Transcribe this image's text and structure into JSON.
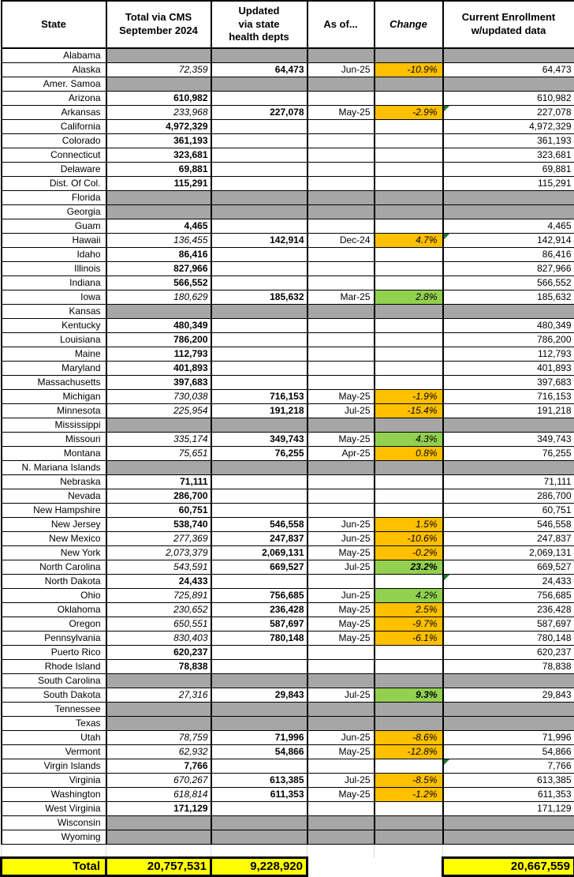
{
  "colors": {
    "orange": "#FFC000",
    "green": "#92D050",
    "gray": "#A6A6A6",
    "yellow": "#FFFF00",
    "flag_triangle": "#1E7B34"
  },
  "table": {
    "header": {
      "state": "State",
      "cms": "Total via CMS\nSeptember 2024",
      "updated": "Updated\nvia state\nhealth depts",
      "as_of": "As of...",
      "change": "Change",
      "current": "Current Enrollment\nw/updated data"
    },
    "rows": [
      {
        "state": "Alabama",
        "gray": true
      },
      {
        "state": "Alaska",
        "cms": "72,359",
        "cms_style": "italic",
        "updated": "64,473",
        "as_of": "Jun-25",
        "change": "-10.9%",
        "change_bg": "orange",
        "current": "64,473"
      },
      {
        "state": "Amer. Samoa",
        "gray": true
      },
      {
        "state": "Arizona",
        "cms": "610,982",
        "cms_style": "bold",
        "current": "610,982"
      },
      {
        "state": "Arkansas",
        "cms": "233,968",
        "cms_style": "italic",
        "updated": "227,078",
        "as_of": "May-25",
        "change": "-2.9%",
        "change_bg": "orange",
        "current": "227,078",
        "flag": true
      },
      {
        "state": "California",
        "cms": "4,972,329",
        "cms_style": "bold",
        "current": "4,972,329"
      },
      {
        "state": "Colorado",
        "cms": "361,193",
        "cms_style": "bold",
        "current": "361,193"
      },
      {
        "state": "Connecticut",
        "cms": "323,681",
        "cms_style": "bold",
        "current": "323,681"
      },
      {
        "state": "Delaware",
        "cms": "69,881",
        "cms_style": "bold",
        "current": "69,881"
      },
      {
        "state": "Dist. Of Col.",
        "cms": "115,291",
        "cms_style": "bold",
        "current": "115,291"
      },
      {
        "state": "Florida",
        "gray": true
      },
      {
        "state": "Georgia",
        "gray": true
      },
      {
        "state": "Guam",
        "cms": "4,465",
        "cms_style": "bold",
        "current": "4,465"
      },
      {
        "state": "Hawaii",
        "cms": "136,455",
        "cms_style": "italic",
        "updated": "142,914",
        "as_of": "Dec-24",
        "change": "4.7%",
        "change_bg": "orange",
        "current": "142,914",
        "flag": true
      },
      {
        "state": "Idaho",
        "cms": "86,416",
        "cms_style": "bold",
        "current": "86,416"
      },
      {
        "state": "Illinois",
        "cms": "827,966",
        "cms_style": "bold",
        "current": "827,966"
      },
      {
        "state": "Indiana",
        "cms": "566,552",
        "cms_style": "bold",
        "current": "566,552"
      },
      {
        "state": "Iowa",
        "cms": "180,629",
        "cms_style": "italic",
        "updated": "185,632",
        "as_of": "Mar-25",
        "change": "2.8%",
        "change_bg": "green",
        "current": "185,632"
      },
      {
        "state": "Kansas",
        "gray": true
      },
      {
        "state": "Kentucky",
        "cms": "480,349",
        "cms_style": "bold",
        "current": "480,349"
      },
      {
        "state": "Louisiana",
        "cms": "786,200",
        "cms_style": "bold",
        "current": "786,200"
      },
      {
        "state": "Maine",
        "cms": "112,793",
        "cms_style": "bold",
        "current": "112,793"
      },
      {
        "state": "Maryland",
        "cms": "401,893",
        "cms_style": "bold",
        "current": "401,893"
      },
      {
        "state": "Massachusetts",
        "cms": "397,683",
        "cms_style": "bold",
        "current": "397,683"
      },
      {
        "state": "Michigan",
        "cms": "730,038",
        "cms_style": "italic",
        "updated": "716,153",
        "as_of": "May-25",
        "change": "-1.9%",
        "change_bg": "orange",
        "current": "716,153"
      },
      {
        "state": "Minnesota",
        "cms": "225,954",
        "cms_style": "italic",
        "updated": "191,218",
        "as_of": "Jul-25",
        "change": "-15.4%",
        "change_bg": "orange",
        "current": "191,218"
      },
      {
        "state": "Mississippi",
        "gray": true
      },
      {
        "state": "Missouri",
        "cms": "335,174",
        "cms_style": "italic",
        "updated": "349,743",
        "as_of": "May-25",
        "change": "4.3%",
        "change_bg": "green",
        "current": "349,743"
      },
      {
        "state": "Montana",
        "cms": "75,651",
        "cms_style": "italic",
        "updated": "76,255",
        "as_of": "Apr-25",
        "change": "0.8%",
        "change_bg": "orange",
        "current": "76,255"
      },
      {
        "state": "N. Mariana Islands",
        "gray": true
      },
      {
        "state": "Nebraska",
        "cms": "71,111",
        "cms_style": "bold",
        "current": "71,111"
      },
      {
        "state": "Nevada",
        "cms": "286,700",
        "cms_style": "bold",
        "current": "286,700"
      },
      {
        "state": "New Hampshire",
        "cms": "60,751",
        "cms_style": "bold",
        "current": "60,751"
      },
      {
        "state": "New Jersey",
        "cms": "538,740",
        "cms_style": "bold",
        "updated": "546,558",
        "as_of": "Jun-25",
        "change": "1.5%",
        "change_bg": "orange",
        "current": "546,558"
      },
      {
        "state": "New Mexico",
        "cms": "277,369",
        "cms_style": "italic",
        "updated": "247,837",
        "as_of": "Jun-25",
        "change": "-10.6%",
        "change_bg": "orange",
        "current": "247,837"
      },
      {
        "state": "New York",
        "cms": "2,073,379",
        "cms_style": "italic",
        "updated": "2,069,131",
        "as_of": "May-25",
        "change": "-0.2%",
        "change_bg": "orange",
        "current": "2,069,131"
      },
      {
        "state": "North Carolina",
        "cms": "543,591",
        "cms_style": "italic",
        "updated": "669,527",
        "as_of": "Jul-25",
        "change": "23.2%",
        "change_bg": "green",
        "change_bold": true,
        "current": "669,527"
      },
      {
        "state": "North Dakota",
        "cms": "24,433",
        "cms_style": "bold",
        "current": "24,433",
        "flag": true
      },
      {
        "state": "Ohio",
        "cms": "725,891",
        "cms_style": "italic",
        "updated": "756,685",
        "as_of": "Jun-25",
        "change": "4.2%",
        "change_bg": "green",
        "current": "756,685"
      },
      {
        "state": "Oklahoma",
        "cms": "230,652",
        "cms_style": "italic",
        "updated": "236,428",
        "as_of": "May-25",
        "change": "2.5%",
        "change_bg": "orange",
        "current": "236,428"
      },
      {
        "state": "Oregon",
        "cms": "650,551",
        "cms_style": "italic",
        "updated": "587,697",
        "as_of": "May-25",
        "change": "-9.7%",
        "change_bg": "orange",
        "current": "587,697"
      },
      {
        "state": "Pennsylvania",
        "cms": "830,403",
        "cms_style": "italic",
        "updated": "780,148",
        "as_of": "May-25",
        "change": "-6.1%",
        "change_bg": "orange",
        "current": "780,148"
      },
      {
        "state": "Puerto Rico",
        "cms": "620,237",
        "cms_style": "bold",
        "current": "620,237"
      },
      {
        "state": "Rhode Island",
        "cms": "78,838",
        "cms_style": "bold",
        "current": "78,838"
      },
      {
        "state": "South Carolina",
        "gray": true
      },
      {
        "state": "South Dakota",
        "cms": "27,316",
        "cms_style": "italic",
        "updated": "29,843",
        "as_of": "Jul-25",
        "change": "9.3%",
        "change_bg": "green",
        "change_bold": true,
        "current": "29,843"
      },
      {
        "state": "Tennessee",
        "gray": true
      },
      {
        "state": "Texas",
        "gray": true
      },
      {
        "state": "Utah",
        "cms": "78,759",
        "cms_style": "italic",
        "updated": "71,996",
        "as_of": "Jun-25",
        "change": "-8.6%",
        "change_bg": "orange",
        "current": "71,996"
      },
      {
        "state": "Vermont",
        "cms": "62,932",
        "cms_style": "italic",
        "updated": "54,866",
        "as_of": "May-25",
        "change": "-12.8%",
        "change_bg": "orange",
        "current": "54,866"
      },
      {
        "state": "Virgin Islands",
        "cms": "7,766",
        "cms_style": "bold",
        "current": "7,766",
        "flag": true
      },
      {
        "state": "Virginia",
        "cms": "670,267",
        "cms_style": "italic",
        "updated": "613,385",
        "as_of": "Jul-25",
        "change": "-8.5%",
        "change_bg": "orange",
        "current": "613,385"
      },
      {
        "state": "Washington",
        "cms": "618,814",
        "cms_style": "italic",
        "updated": "611,353",
        "as_of": "May-25",
        "change": "-1.2%",
        "change_bg": "orange",
        "current": "611,353"
      },
      {
        "state": "West Virginia",
        "cms": "171,129",
        "cms_style": "bold",
        "current": "171,129"
      },
      {
        "state": "Wisconsin",
        "gray": true
      },
      {
        "state": "Wyoming",
        "gray": true
      }
    ],
    "total": {
      "label": "Total",
      "cms": "20,757,531",
      "updated": "9,228,920",
      "current": "20,667,559"
    }
  }
}
